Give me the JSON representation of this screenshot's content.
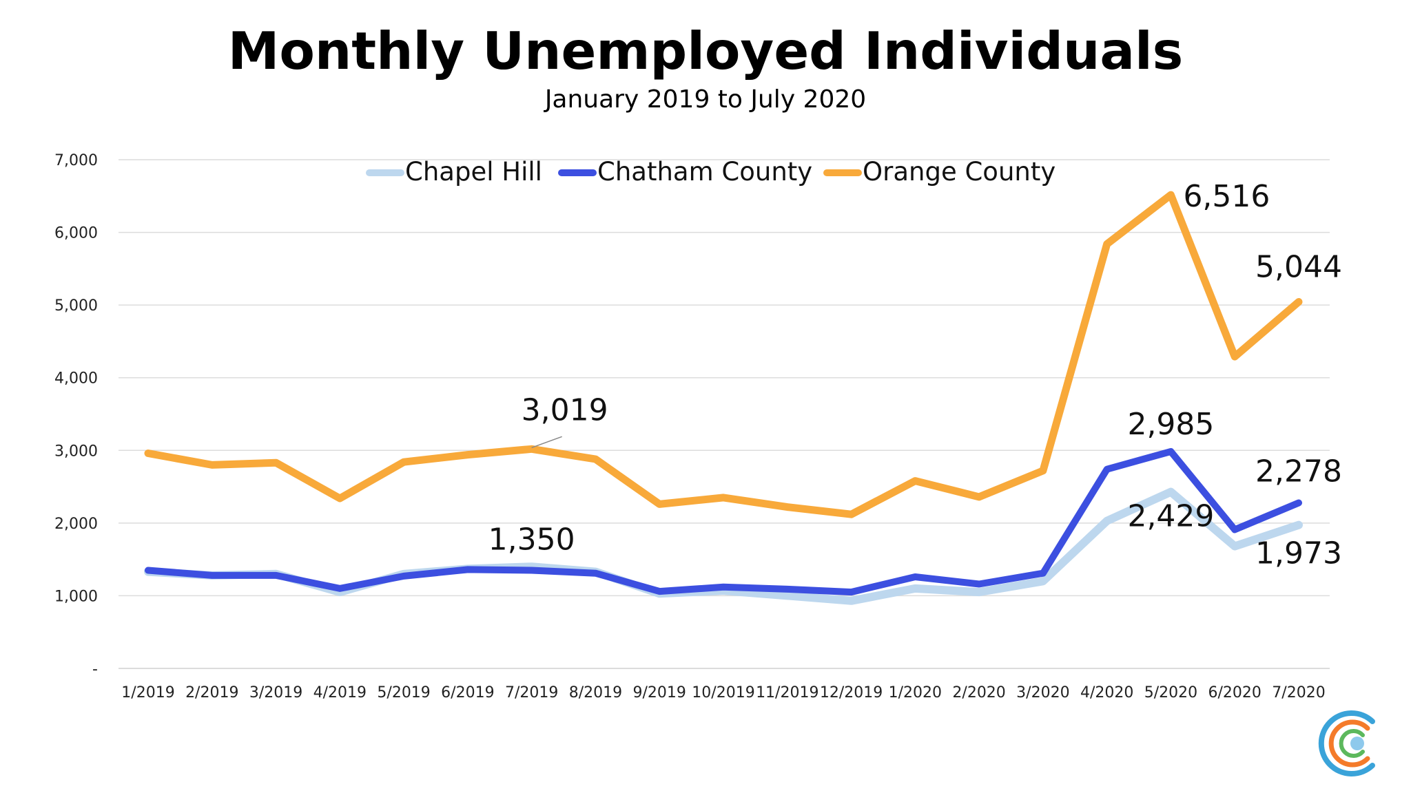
{
  "chart_data": {
    "type": "line",
    "title": "Monthly Unemployed Individuals",
    "subtitle": "January 2019 to July 2020",
    "xlabel": "",
    "ylabel": "",
    "categories": [
      "1/2019",
      "2/2019",
      "3/2019",
      "4/2019",
      "5/2019",
      "6/2019",
      "7/2019",
      "8/2019",
      "9/2019",
      "10/2019",
      "11/2019",
      "12/2019",
      "1/2020",
      "2/2020",
      "3/2020",
      "4/2020",
      "5/2020",
      "6/2020",
      "7/2020"
    ],
    "ylim": [
      0,
      7000
    ],
    "y_ticks": [
      0,
      1000,
      2000,
      3000,
      4000,
      5000,
      6000,
      7000
    ],
    "y_tick_labels": [
      "-",
      "1,000",
      "2,000",
      "3,000",
      "4,000",
      "5,000",
      "6,000",
      "7,000"
    ],
    "grid": true,
    "legend_position": "top",
    "series": [
      {
        "name": "Chapel Hill",
        "color": "#bdd7ee",
        "values": [
          1330,
          1280,
          1300,
          1050,
          1300,
          1370,
          1400,
          1330,
          1030,
          1070,
          1000,
          930,
          1100,
          1050,
          1200,
          2030,
          2429,
          1680,
          1973
        ]
      },
      {
        "name": "Chatham County",
        "color": "#3c4fe0",
        "values": [
          1350,
          1280,
          1280,
          1100,
          1270,
          1360,
          1350,
          1310,
          1060,
          1120,
          1090,
          1050,
          1260,
          1160,
          1310,
          2740,
          2985,
          1910,
          2278
        ]
      },
      {
        "name": "Orange County",
        "color": "#f8a93a",
        "values": [
          2960,
          2800,
          2830,
          2340,
          2840,
          2940,
          3019,
          2880,
          2260,
          2350,
          2220,
          2120,
          2580,
          2360,
          2720,
          5840,
          6516,
          4290,
          5044
        ]
      }
    ],
    "annotations": [
      {
        "text": "3,019",
        "series": "Orange County",
        "category": "7/2019",
        "value": 3019
      },
      {
        "text": "1,350",
        "series": "Chatham County",
        "category": "7/2019",
        "value": 1350
      },
      {
        "text": "6,516",
        "series": "Orange County",
        "category": "5/2020",
        "value": 6516
      },
      {
        "text": "2,985",
        "series": "Chatham County",
        "category": "5/2020",
        "value": 2985
      },
      {
        "text": "2,429",
        "series": "Chapel Hill",
        "category": "5/2020",
        "value": 2429
      },
      {
        "text": "5,044",
        "series": "Orange County",
        "category": "7/2020",
        "value": 5044
      },
      {
        "text": "2,278",
        "series": "Chatham County",
        "category": "7/2020",
        "value": 2278
      },
      {
        "text": "1,973",
        "series": "Chapel Hill",
        "category": "7/2020",
        "value": 1973
      }
    ]
  },
  "logo": {
    "icon": "concentric-c-logo-icon",
    "colors": [
      "#3aa3d9",
      "#f47b2a",
      "#5cb85c",
      "#8ec9ec"
    ]
  }
}
